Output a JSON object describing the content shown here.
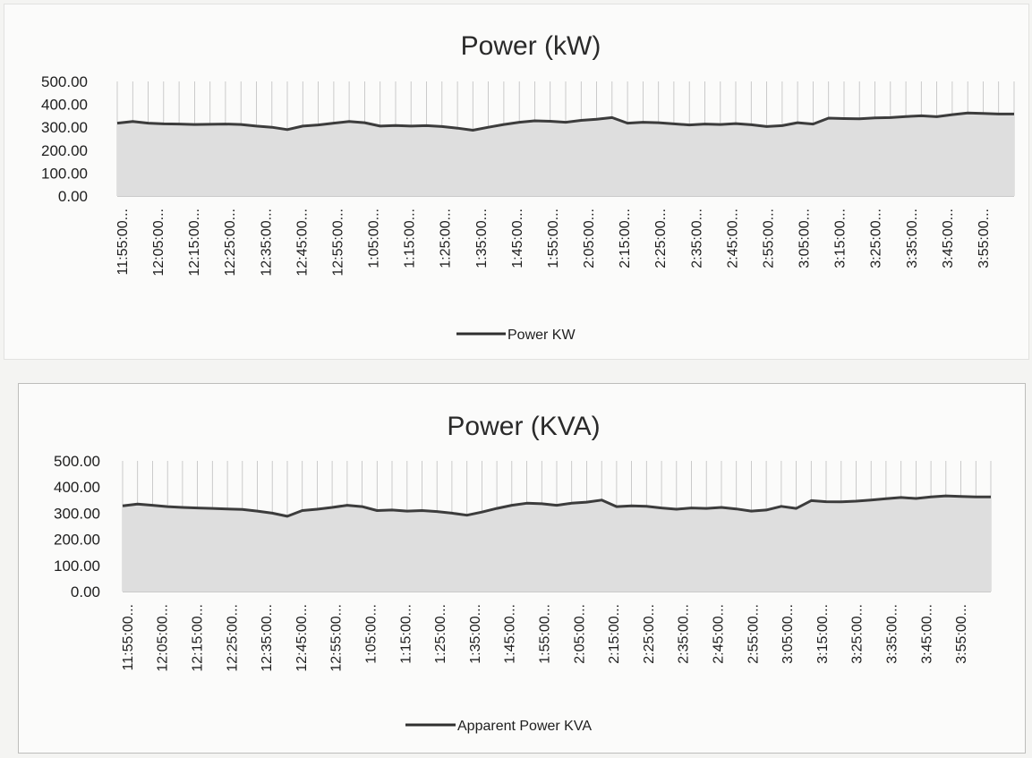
{
  "chart_data": [
    {
      "type": "area",
      "title": "Power (kW)",
      "series": [
        {
          "name": "Power KW",
          "values": [
            318,
            325,
            318,
            315,
            314,
            312,
            313,
            314,
            312,
            305,
            300,
            290,
            305,
            310,
            318,
            325,
            320,
            305,
            308,
            305,
            307,
            303,
            296,
            287,
            300,
            312,
            322,
            328,
            326,
            322,
            330,
            335,
            342,
            318,
            322,
            320,
            315,
            310,
            314,
            312,
            316,
            311,
            303,
            307,
            320,
            314,
            340,
            338,
            337,
            341,
            342,
            347,
            350,
            346,
            355,
            362,
            360,
            358,
            358
          ]
        }
      ],
      "x_tick_labels": [
        "11:55:00...",
        "12:05:00...",
        "12:15:00...",
        "12:25:00...",
        "12:35:00...",
        "12:45:00...",
        "12:55:00...",
        "1:05:00...",
        "1:15:00...",
        "1:25:00...",
        "1:35:00...",
        "1:45:00...",
        "1:55:00...",
        "2:05:00...",
        "2:15:00...",
        "2:25:00...",
        "2:35:00...",
        "2:45:00...",
        "2:55:00...",
        "3:05:00...",
        "3:15:00...",
        "3:25:00...",
        "3:35:00...",
        "3:45:00...",
        "3:55:00..."
      ],
      "y_tick_labels": [
        "500.00",
        "400.00",
        "300.00",
        "200.00",
        "100.00",
        "0.00"
      ],
      "ylim": [
        0,
        500
      ],
      "grid": true,
      "legend_position": "bottom"
    },
    {
      "type": "area",
      "title": "Power (KVA)",
      "series": [
        {
          "name": "Apparent Power KVA",
          "values": [
            328,
            335,
            330,
            325,
            322,
            320,
            318,
            316,
            314,
            308,
            300,
            288,
            310,
            315,
            322,
            330,
            325,
            310,
            312,
            308,
            310,
            306,
            300,
            292,
            304,
            318,
            330,
            338,
            336,
            330,
            338,
            342,
            350,
            325,
            328,
            326,
            320,
            315,
            320,
            318,
            322,
            316,
            308,
            312,
            326,
            318,
            348,
            344,
            343,
            346,
            350,
            355,
            360,
            356,
            362,
            366,
            364,
            362,
            362
          ]
        }
      ],
      "x_tick_labels": [
        "11:55:00...",
        "12:05:00...",
        "12:15:00...",
        "12:25:00...",
        "12:35:00...",
        "12:45:00...",
        "12:55:00...",
        "1:05:00...",
        "1:15:00...",
        "1:25:00...",
        "1:35:00...",
        "1:45:00...",
        "1:55:00...",
        "2:05:00...",
        "2:15:00...",
        "2:25:00...",
        "2:35:00...",
        "2:45:00...",
        "2:55:00...",
        "3:05:00...",
        "3:15:00...",
        "3:25:00...",
        "3:35:00...",
        "3:45:00...",
        "3:55:00..."
      ],
      "y_tick_labels": [
        "500.00",
        "400.00",
        "300.00",
        "200.00",
        "100.00",
        "0.00"
      ],
      "ylim": [
        0,
        500
      ],
      "grid": true,
      "legend_position": "bottom"
    }
  ],
  "colors": {
    "line": "#3c3c3c",
    "fill": "#dedede",
    "grid": "#bfbfbf",
    "background": "#fbfbfa"
  }
}
